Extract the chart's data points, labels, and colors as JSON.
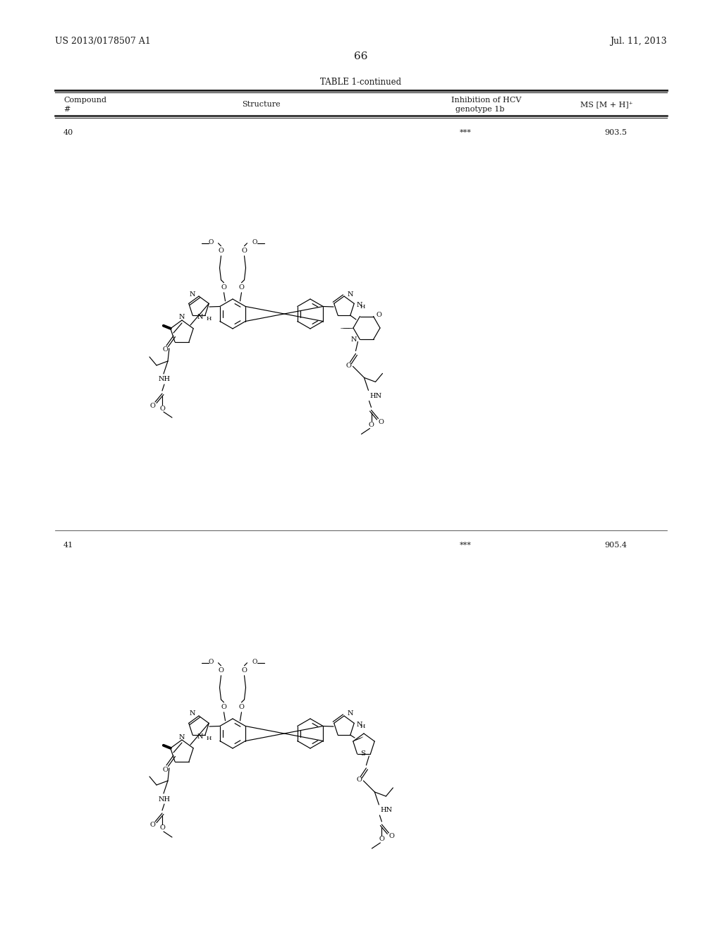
{
  "page_number": "66",
  "patent_left": "US 2013/0178507 A1",
  "patent_right": "Jul. 11, 2013",
  "table_title": "TABLE 1-continued",
  "col_compound": "Compound",
  "col_hash": "#",
  "col_structure": "Structure",
  "col_inhibition": "Inhibition of HCV",
  "col_genotype": "genotype 1b",
  "col_ms": "MS [M + H]⁺",
  "row1_num": "40",
  "row1_inhibition": "***",
  "row1_ms": "903.5",
  "row2_num": "41",
  "row2_inhibition": "***",
  "row2_ms": "905.4",
  "bg_color": "#ffffff",
  "text_color": "#1a1a1a",
  "line_color": "#1a1a1a"
}
